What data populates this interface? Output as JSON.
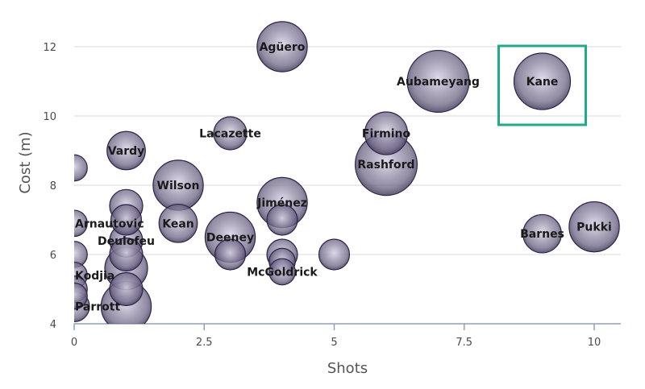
{
  "chart_data": {
    "type": "scatter",
    "xlabel": "Shots",
    "ylabel": "Cost (m)",
    "xlim": [
      0,
      10.5
    ],
    "ylim": [
      4,
      12.8
    ],
    "xticks": [
      0,
      2.5,
      5,
      7.5,
      10
    ],
    "xtick_labels": [
      "0",
      "2.5",
      "5",
      "7.5",
      "10"
    ],
    "yticks": [
      4,
      6,
      8,
      10,
      12
    ],
    "ytick_labels": [
      "4",
      "6",
      "8",
      "10",
      "12"
    ],
    "grid": "horizontal",
    "bubble_color": "#6e6585",
    "highlight_color": "#22a88a",
    "highlighted_point": "Kane",
    "points": [
      {
        "label": "Agüero",
        "x": 4,
        "y": 12,
        "size": 3
      },
      {
        "label": "Aubameyang",
        "x": 7,
        "y": 11,
        "size": 5
      },
      {
        "label": "Kane",
        "x": 9,
        "y": 11,
        "size": 4
      },
      {
        "label": "Lacazette",
        "x": 3,
        "y": 9.5,
        "size": 1
      },
      {
        "label": "Firmino",
        "x": 6,
        "y": 9.5,
        "size": 2
      },
      {
        "label": "Vardy",
        "x": 1,
        "y": 9,
        "size": 1.5
      },
      {
        "label": "Rashford",
        "x": 6,
        "y": 8.6,
        "size": 5
      },
      {
        "label": "",
        "x": 0,
        "y": 8.5,
        "size": 0.5
      },
      {
        "label": "Wilson",
        "x": 2,
        "y": 8,
        "size": 3
      },
      {
        "label": "Jiménez",
        "x": 4,
        "y": 7.5,
        "size": 3
      },
      {
        "label": "",
        "x": 1,
        "y": 7.4,
        "size": 1
      },
      {
        "label": "Arnautovic",
        "x": 0,
        "y": 6.9,
        "size": 0.5
      },
      {
        "label": "",
        "x": 1,
        "y": 7,
        "size": 0.8
      },
      {
        "label": "",
        "x": 4,
        "y": 7,
        "size": 0.8
      },
      {
        "label": "Kean",
        "x": 2,
        "y": 6.9,
        "size": 1.5
      },
      {
        "label": "Pukki",
        "x": 10,
        "y": 6.8,
        "size": 3
      },
      {
        "label": "Barnes",
        "x": 9,
        "y": 6.6,
        "size": 1.5
      },
      {
        "label": "Deeney",
        "x": 3,
        "y": 6.5,
        "size": 3
      },
      {
        "label": "Deulofeu",
        "x": 1,
        "y": 6.4,
        "size": 1
      },
      {
        "label": "",
        "x": 1,
        "y": 6,
        "size": 1
      },
      {
        "label": "",
        "x": 0,
        "y": 6,
        "size": 0.5
      },
      {
        "label": "",
        "x": 3,
        "y": 6,
        "size": 0.8
      },
      {
        "label": "",
        "x": 4,
        "y": 6,
        "size": 0.8
      },
      {
        "label": "",
        "x": 5,
        "y": 6,
        "size": 0.8
      },
      {
        "label": "",
        "x": 4,
        "y": 5.8,
        "size": 0.5
      },
      {
        "label": "McGoldrick",
        "x": 4,
        "y": 5.5,
        "size": 0.5
      },
      {
        "label": "",
        "x": 1,
        "y": 5.6,
        "size": 2
      },
      {
        "label": "Kodjia",
        "x": 0,
        "y": 5.4,
        "size": 0.5
      },
      {
        "label": "",
        "x": 0,
        "y": 5,
        "size": 0.5
      },
      {
        "label": "",
        "x": 1,
        "y": 5,
        "size": 1
      },
      {
        "label": "",
        "x": 0,
        "y": 4.8,
        "size": 0.5
      },
      {
        "label": "Parrott",
        "x": 0,
        "y": 4.5,
        "size": 0.8
      },
      {
        "label": "",
        "x": 1,
        "y": 4.5,
        "size": 3
      }
    ]
  }
}
